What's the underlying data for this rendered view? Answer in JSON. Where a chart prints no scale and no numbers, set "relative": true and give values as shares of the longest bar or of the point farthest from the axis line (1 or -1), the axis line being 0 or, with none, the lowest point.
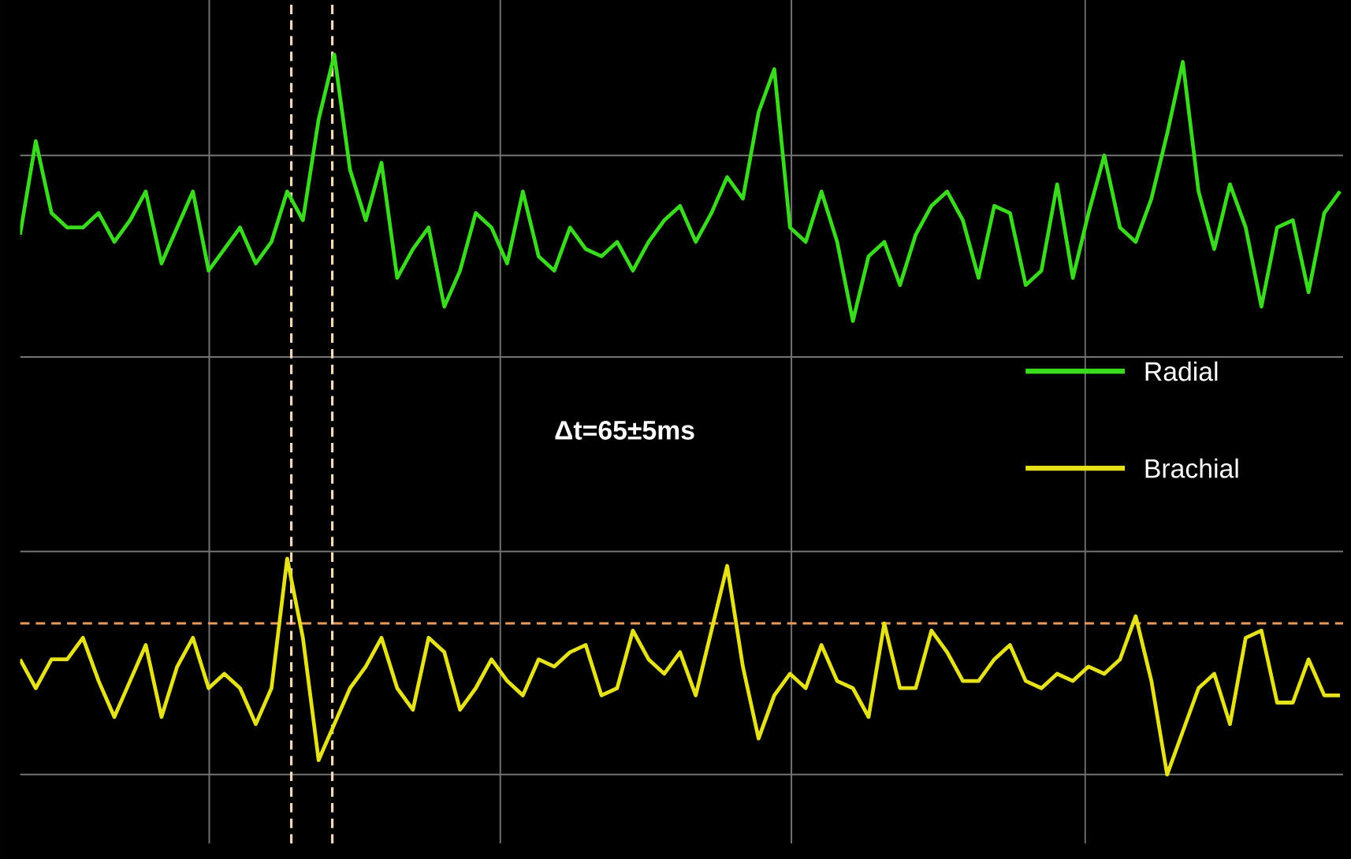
{
  "chart_data": {
    "type": "line",
    "relative": true,
    "grid": true,
    "legend": "right",
    "categories": [
      null,
      null,
      null,
      null,
      null,
      null,
      null,
      null,
      null,
      null,
      null,
      null,
      null,
      null,
      null,
      null,
      null,
      null,
      null,
      null,
      null,
      null,
      null,
      null,
      null,
      null,
      null,
      null,
      null,
      null,
      null,
      null,
      null,
      null,
      null,
      null,
      null,
      null,
      null,
      null,
      null,
      null,
      null,
      null,
      null,
      null,
      null,
      null,
      null,
      null,
      null,
      null,
      null,
      null,
      null,
      null,
      null,
      null,
      null,
      null,
      null,
      null,
      null,
      null,
      null,
      null,
      null,
      null,
      null,
      null,
      null,
      null,
      null,
      null,
      null,
      null,
      null,
      null,
      null,
      null,
      null,
      null,
      null,
      null,
      null
    ],
    "series": [
      {
        "name": "Radial",
        "color": "#3ada1e",
        "values": [
          0.75,
          0.88,
          0.78,
          0.76,
          0.76,
          0.78,
          0.74,
          0.77,
          0.81,
          0.71,
          0.76,
          0.81,
          0.7,
          0.73,
          0.76,
          0.71,
          0.74,
          0.81,
          0.77,
          0.91,
          1,
          0.84,
          0.77,
          0.85,
          0.69,
          0.73,
          0.76,
          0.65,
          0.7,
          0.78,
          0.76,
          0.71,
          0.81,
          0.72,
          0.7,
          0.76,
          0.73,
          0.72,
          0.74,
          0.7,
          0.74,
          0.77,
          0.79,
          0.74,
          0.78,
          0.83,
          0.8,
          0.92,
          0.98,
          0.76,
          0.74,
          0.81,
          0.74,
          0.63,
          0.72,
          0.74,
          0.68,
          0.75,
          0.79,
          0.81,
          0.77,
          0.69,
          0.79,
          0.78,
          0.68,
          0.7,
          0.82,
          0.69,
          0.78,
          0.86,
          0.76,
          0.74,
          0.8,
          0.89,
          0.99,
          0.81,
          0.73,
          0.82,
          0.76,
          0.65,
          0.76,
          0.77,
          0.67,
          0.78,
          0.81
        ]
      },
      {
        "name": "Brachial",
        "color": "#e5e21c",
        "values": [
          0.16,
          0.12,
          0.16,
          0.16,
          0.19,
          0.13,
          0.08,
          0.13,
          0.18,
          0.08,
          0.15,
          0.19,
          0.12,
          0.14,
          0.12,
          0.07,
          0.12,
          0.3,
          0.19,
          0.02,
          0.07,
          0.12,
          0.15,
          0.19,
          0.12,
          0.09,
          0.19,
          0.17,
          0.09,
          0.12,
          0.16,
          0.13,
          0.11,
          0.16,
          0.15,
          0.17,
          0.18,
          0.11,
          0.12,
          0.2,
          0.16,
          0.14,
          0.17,
          0.11,
          0.2,
          0.29,
          0.15,
          0.05,
          0.11,
          0.14,
          0.12,
          0.18,
          0.13,
          0.12,
          0.08,
          0.21,
          0.12,
          0.12,
          0.2,
          0.17,
          0.13,
          0.13,
          0.16,
          0.18,
          0.13,
          0.12,
          0.14,
          0.13,
          0.15,
          0.14,
          0.16,
          0.22,
          0.13,
          0,
          0.06,
          0.12,
          0.14,
          0.07,
          0.19,
          0.2,
          0.1,
          0.1,
          0.16,
          0.11,
          0.11
        ]
      }
    ],
    "annotations": [
      "Δt=65±5ms"
    ],
    "ref_lines": [
      {
        "axis": "y",
        "value": 0.21,
        "color": "#e89a5a",
        "line_style": "dashed"
      }
    ]
  }
}
